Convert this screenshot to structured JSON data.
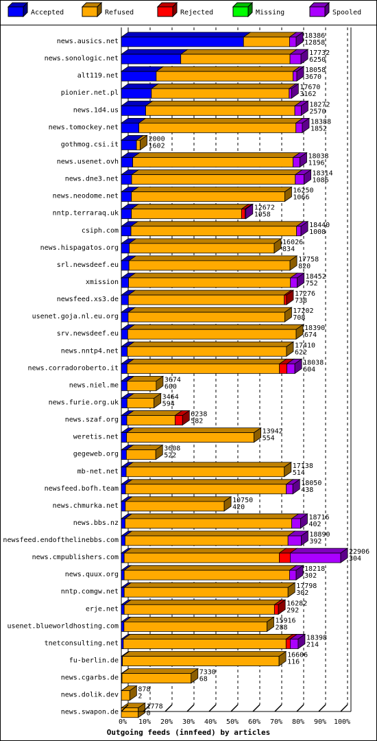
{
  "chart_data": {
    "type": "bar",
    "orientation": "horizontal",
    "stacked": true,
    "xlabel": "Outgoing feeds (innfeed) by articles",
    "xlim": [
      0,
      100
    ],
    "x_ticks": [
      "0%",
      "10%",
      "20%",
      "30%",
      "40%",
      "50%",
      "60%",
      "70%",
      "80%",
      "90%",
      "100%"
    ],
    "legend": {
      "position": "top",
      "items": [
        {
          "name": "Accepted",
          "color": "#0000ff"
        },
        {
          "name": "Refused",
          "color": "#ffaa00"
        },
        {
          "name": "Rejected",
          "color": "#ff0000"
        },
        {
          "name": "Missing",
          "color": "#00ff00"
        },
        {
          "name": "Spooled",
          "color": "#aa00ff"
        }
      ]
    },
    "rows": [
      {
        "name": "news.ausics.net",
        "total": "18386",
        "accepted": "12858",
        "pct": {
          "accepted": 55.7,
          "refused": 21.0,
          "rejected": 0,
          "missing": 0,
          "spooled": 3.0
        }
      },
      {
        "name": "news.sonologic.net",
        "total": "17732",
        "accepted": "6250",
        "pct": {
          "accepted": 27.1,
          "refused": 49.8,
          "rejected": 0,
          "missing": 0,
          "spooled": 5.0
        }
      },
      {
        "name": "alt119.net",
        "total": "18058",
        "accepted": "3670",
        "pct": {
          "accepted": 15.9,
          "refused": 62.4,
          "rejected": 0,
          "missing": 0,
          "spooled": 1.7
        }
      },
      {
        "name": "pionier.net.pl",
        "total": "17670",
        "accepted": "3162",
        "pct": {
          "accepted": 13.7,
          "refused": 62.8,
          "rejected": 0,
          "missing": 0,
          "spooled": 1.1
        }
      },
      {
        "name": "news.1d4.us",
        "total": "18272",
        "accepted": "2570",
        "pct": {
          "accepted": 11.1,
          "refused": 68.0,
          "rejected": 0,
          "missing": 0,
          "spooled": 2.9
        }
      },
      {
        "name": "news.tomockey.net",
        "total": "18388",
        "accepted": "1852",
        "pct": {
          "accepted": 8.0,
          "refused": 71.6,
          "rejected": 0,
          "missing": 0,
          "spooled": 2.9
        }
      },
      {
        "name": "gothmog.csi.it",
        "total": "2000",
        "accepted": "1602",
        "pct": {
          "accepted": 6.9,
          "refused": 1.7,
          "rejected": 0,
          "missing": 0,
          "spooled": 0
        }
      },
      {
        "name": "news.usenet.ovh",
        "total": "18038",
        "accepted": "1196",
        "pct": {
          "accepted": 5.2,
          "refused": 73.1,
          "rejected": 0,
          "missing": 0,
          "spooled": 3.1
        }
      },
      {
        "name": "news.dne3.net",
        "total": "18314",
        "accepted": "1086",
        "pct": {
          "accepted": 4.7,
          "refused": 74.6,
          "rejected": 0,
          "missing": 0,
          "spooled": 4.0
        }
      },
      {
        "name": "news.neodome.net",
        "total": "16250",
        "accepted": "1066",
        "pct": {
          "accepted": 4.6,
          "refused": 69.9,
          "rejected": 0,
          "missing": 0,
          "spooled": 0
        }
      },
      {
        "name": "nntp.terraraq.uk",
        "total": "12672",
        "accepted": "1058",
        "pct": {
          "accepted": 4.6,
          "refused": 50.2,
          "rejected": 1.6,
          "missing": 0,
          "spooled": 0.4
        }
      },
      {
        "name": "csiph.com",
        "total": "18440",
        "accepted": "1008",
        "pct": {
          "accepted": 4.4,
          "refused": 75.5,
          "rejected": 0,
          "missing": 0,
          "spooled": 2.0
        }
      },
      {
        "name": "news.hispagatos.org",
        "total": "16026",
        "accepted": "834",
        "pct": {
          "accepted": 3.6,
          "refused": 66.1,
          "rejected": 0,
          "missing": 0,
          "spooled": 0
        }
      },
      {
        "name": "srl.newsdeef.eu",
        "total": "17758",
        "accepted": "820",
        "pct": {
          "accepted": 3.5,
          "refused": 73.4,
          "rejected": 0,
          "missing": 0,
          "spooled": 0
        }
      },
      {
        "name": "xmission",
        "total": "18452",
        "accepted": "752",
        "pct": {
          "accepted": 3.3,
          "refused": 73.8,
          "rejected": 0,
          "missing": 0,
          "spooled": 3.1
        }
      },
      {
        "name": "newsfeed.xs3.de",
        "total": "17276",
        "accepted": "738",
        "pct": {
          "accepted": 3.2,
          "refused": 71.1,
          "rejected": 1.0,
          "missing": 0,
          "spooled": 0
        }
      },
      {
        "name": "usenet.goja.nl.eu.org",
        "total": "17202",
        "accepted": "708",
        "pct": {
          "accepted": 3.1,
          "refused": 71.4,
          "rejected": 0,
          "missing": 0,
          "spooled": 0
        }
      },
      {
        "name": "srv.newsdeef.eu",
        "total": "18390",
        "accepted": "674",
        "pct": {
          "accepted": 2.9,
          "refused": 76.8,
          "rejected": 0,
          "missing": 0,
          "spooled": 0
        }
      },
      {
        "name": "news.nntp4.net",
        "total": "17410",
        "accepted": "622",
        "pct": {
          "accepted": 2.7,
          "refused": 72.6,
          "rejected": 0,
          "missing": 0,
          "spooled": 0
        }
      },
      {
        "name": "news.corradoroberto.it",
        "total": "18038",
        "accepted": "604",
        "pct": {
          "accepted": 2.6,
          "refused": 69.5,
          "rejected": 3.4,
          "missing": 0,
          "spooled": 3.6
        }
      },
      {
        "name": "news.niel.me",
        "total": "3674",
        "accepted": "600",
        "pct": {
          "accepted": 2.6,
          "refused": 13.3,
          "rejected": 0,
          "missing": 0,
          "spooled": 0
        }
      },
      {
        "name": "news.furie.org.uk",
        "total": "3464",
        "accepted": "594",
        "pct": {
          "accepted": 2.6,
          "refused": 12.3,
          "rejected": 0,
          "missing": 0,
          "spooled": 0
        }
      },
      {
        "name": "news.szaf.org",
        "total": "6238",
        "accepted": "582",
        "pct": {
          "accepted": 2.5,
          "refused": 22.0,
          "rejected": 3.4,
          "missing": 0,
          "spooled": 0
        }
      },
      {
        "name": "weretis.net",
        "total": "13942",
        "accepted": "554",
        "pct": {
          "accepted": 2.4,
          "refused": 58.1,
          "rejected": 0,
          "missing": 0,
          "spooled": 0
        }
      },
      {
        "name": "gegeweb.org",
        "total": "3608",
        "accepted": "522",
        "pct": {
          "accepted": 2.3,
          "refused": 13.4,
          "rejected": 0,
          "missing": 0,
          "spooled": 0
        }
      },
      {
        "name": "mb-net.net",
        "total": "17138",
        "accepted": "514",
        "pct": {
          "accepted": 2.2,
          "refused": 72.1,
          "rejected": 0,
          "missing": 0,
          "spooled": 0
        }
      },
      {
        "name": "newsfeed.bofh.team",
        "total": "18050",
        "accepted": "438",
        "pct": {
          "accepted": 1.9,
          "refused": 73.3,
          "rejected": 0,
          "missing": 0,
          "spooled": 3.0
        }
      },
      {
        "name": "news.chmurka.net",
        "total": "10750",
        "accepted": "420",
        "pct": {
          "accepted": 1.8,
          "refused": 45.1,
          "rejected": 0,
          "missing": 0,
          "spooled": 0
        }
      },
      {
        "name": "news.bbs.nz",
        "total": "18716",
        "accepted": "402",
        "pct": {
          "accepted": 1.7,
          "refused": 76.0,
          "rejected": 0,
          "missing": 0,
          "spooled": 4.0
        }
      },
      {
        "name": "newsfeed.endofthelinebbs.com",
        "total": "18890",
        "accepted": "392",
        "pct": {
          "accepted": 1.7,
          "refused": 74.3,
          "rejected": 0,
          "missing": 0,
          "spooled": 6.0
        }
      },
      {
        "name": "news.cmpublishers.com",
        "total": "22906",
        "accepted": "304",
        "pct": {
          "accepted": 1.3,
          "refused": 70.7,
          "rejected": 5.0,
          "missing": 0,
          "spooled": 23.0
        }
      },
      {
        "name": "news.quux.org",
        "total": "18218",
        "accepted": "302",
        "pct": {
          "accepted": 1.3,
          "refused": 75.4,
          "rejected": 0,
          "missing": 0,
          "spooled": 3.0
        }
      },
      {
        "name": "nntp.comgw.net",
        "total": "17798",
        "accepted": "302",
        "pct": {
          "accepted": 1.3,
          "refused": 74.7,
          "rejected": 0,
          "missing": 0,
          "spooled": 0
        }
      },
      {
        "name": "erje.net",
        "total": "16282",
        "accepted": "292",
        "pct": {
          "accepted": 1.3,
          "refused": 68.5,
          "rejected": 1.8,
          "missing": 0,
          "spooled": 0
        }
      },
      {
        "name": "usenet.blueworldhosting.com",
        "total": "15916",
        "accepted": "288",
        "pct": {
          "accepted": 1.2,
          "refused": 65.2,
          "rejected": 0,
          "missing": 0,
          "spooled": 0
        }
      },
      {
        "name": "tnetconsulting.net",
        "total": "18398",
        "accepted": "214",
        "pct": {
          "accepted": 0.9,
          "refused": 74.2,
          "rejected": 1.9,
          "missing": 0,
          "spooled": 3.6
        }
      },
      {
        "name": "fu-berlin.de",
        "total": "16606",
        "accepted": "116",
        "pct": {
          "accepted": 0.5,
          "refused": 71.4,
          "rejected": 0,
          "missing": 0,
          "spooled": 0
        }
      },
      {
        "name": "news.cgarbs.de",
        "total": "7330",
        "accepted": "68",
        "pct": {
          "accepted": 0.3,
          "refused": 31.5,
          "rejected": 0,
          "missing": 0,
          "spooled": 0
        }
      },
      {
        "name": "news.dolik.dev",
        "total": "878",
        "accepted": "2",
        "pct": {
          "accepted": 0.05,
          "refused": 3.8,
          "rejected": 0,
          "missing": 0,
          "spooled": 0
        }
      },
      {
        "name": "news.swapon.de",
        "total": "1778",
        "accepted": "0",
        "pct": {
          "accepted": 0,
          "refused": 7.7,
          "rejected": 0,
          "missing": 0,
          "spooled": 0
        }
      }
    ]
  }
}
